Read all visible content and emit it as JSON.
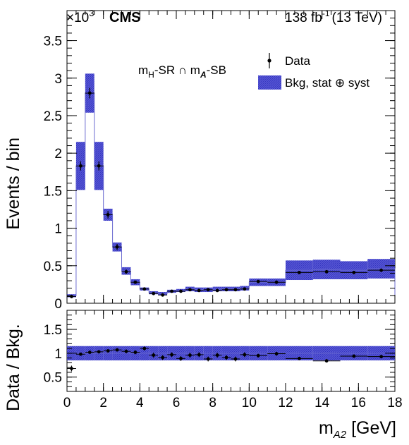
{
  "header": {
    "multiplier_base": "×10",
    "multiplier_exp": "3",
    "experiment": "CMS",
    "lumi_value": "138 fb",
    "lumi_exp": "-1",
    "lumi_energy": "(13 TeV)"
  },
  "region_label": {
    "m1": "m",
    "m1_sub": "H",
    "part1": "-SR ∩ m",
    "m2_sub": "A",
    "part2": "-SB"
  },
  "legend": {
    "data_label": "Data",
    "band_label": "Bkg, stat ⊕ syst"
  },
  "colors": {
    "band_fill": "#5b5bd6",
    "band_hatch": "#2f2fbf",
    "hist_line": "#6a6ad0",
    "data_marker": "#000000"
  },
  "chart_data": [
    {
      "type": "histogram",
      "panel": "main",
      "ylabel": "Events / bin",
      "ylim": [
        0,
        3.9
      ],
      "y_multiplier": 1000,
      "yticks": [
        "0",
        "0.5",
        "1",
        "1.5",
        "2",
        "2.5",
        "3",
        "3.5"
      ],
      "bin_edges": [
        0,
        0.5,
        1.0,
        1.5,
        2.0,
        2.5,
        3.0,
        3.5,
        4.0,
        4.5,
        5.0,
        5.5,
        6.0,
        6.5,
        7.0,
        7.5,
        8.0,
        8.5,
        9.0,
        9.5,
        10.0,
        11.0,
        12.0,
        13.5,
        15.0,
        16.5,
        18.0
      ],
      "background": [
        0.1,
        1.83,
        2.8,
        1.83,
        1.18,
        0.75,
        0.43,
        0.28,
        0.19,
        0.14,
        0.13,
        0.16,
        0.17,
        0.19,
        0.18,
        0.18,
        0.19,
        0.19,
        0.19,
        0.2,
        0.28,
        0.28,
        0.44,
        0.45,
        0.44,
        0.46
      ],
      "band_half_width": [
        0.02,
        0.32,
        0.26,
        0.32,
        0.08,
        0.06,
        0.05,
        0.04,
        0.02,
        0.02,
        0.02,
        0.02,
        0.02,
        0.03,
        0.03,
        0.03,
        0.03,
        0.03,
        0.03,
        0.03,
        0.05,
        0.05,
        0.13,
        0.13,
        0.12,
        0.13
      ],
      "data_y": [
        0.09,
        1.83,
        2.8,
        1.83,
        1.18,
        0.75,
        0.42,
        0.28,
        0.19,
        0.13,
        0.11,
        0.16,
        0.16,
        0.18,
        0.17,
        0.18,
        0.17,
        0.18,
        0.18,
        0.19,
        0.29,
        0.28,
        0.41,
        0.42,
        0.41,
        0.44
      ],
      "data_err": [
        0.02,
        0.06,
        0.07,
        0.06,
        0.05,
        0.04,
        0.03,
        0.02,
        0.02,
        0.02,
        0.02,
        0.02,
        0.02,
        0.02,
        0.02,
        0.02,
        0.02,
        0.02,
        0.02,
        0.02,
        0.02,
        0.02,
        0.02,
        0.02,
        0.02,
        0.02
      ]
    },
    {
      "type": "ratio",
      "panel": "ratio",
      "ylabel": "Data / Bkg.",
      "xlabel": "m",
      "xlabel_sub": "A2",
      "xlabel_unit": " [GeV]",
      "ylim": [
        0.2,
        1.9
      ],
      "xlim": [
        0,
        18
      ],
      "yticks": [
        "0.5",
        "1",
        "1.5"
      ],
      "xticks": [
        "0",
        "2",
        "4",
        "6",
        "8",
        "10",
        "12",
        "14",
        "16",
        "18"
      ],
      "band_half_width": [
        0.15,
        0.15,
        0.15,
        0.15,
        0.15,
        0.15,
        0.15,
        0.15,
        0.15,
        0.15,
        0.15,
        0.15,
        0.15,
        0.15,
        0.15,
        0.15,
        0.15,
        0.15,
        0.15,
        0.15,
        0.15,
        0.15,
        0.15,
        0.15,
        0.15,
        0.15
      ],
      "ratio_y": [
        0.68,
        0.98,
        1.02,
        1.03,
        1.05,
        1.07,
        1.04,
        1.02,
        1.1,
        0.96,
        0.91,
        0.97,
        0.89,
        0.96,
        0.97,
        0.88,
        0.96,
        0.91,
        0.88,
        0.97,
        0.95,
        0.99,
        0.89,
        0.84,
        0.94,
        0.93
      ],
      "ratio_err": [
        0.06,
        0.03,
        0.03,
        0.03,
        0.03,
        0.03,
        0.04,
        0.04,
        0.04,
        0.05,
        0.05,
        0.05,
        0.05,
        0.05,
        0.05,
        0.05,
        0.05,
        0.05,
        0.05,
        0.05,
        0.04,
        0.04,
        0.03,
        0.03,
        0.03,
        0.03
      ]
    }
  ]
}
